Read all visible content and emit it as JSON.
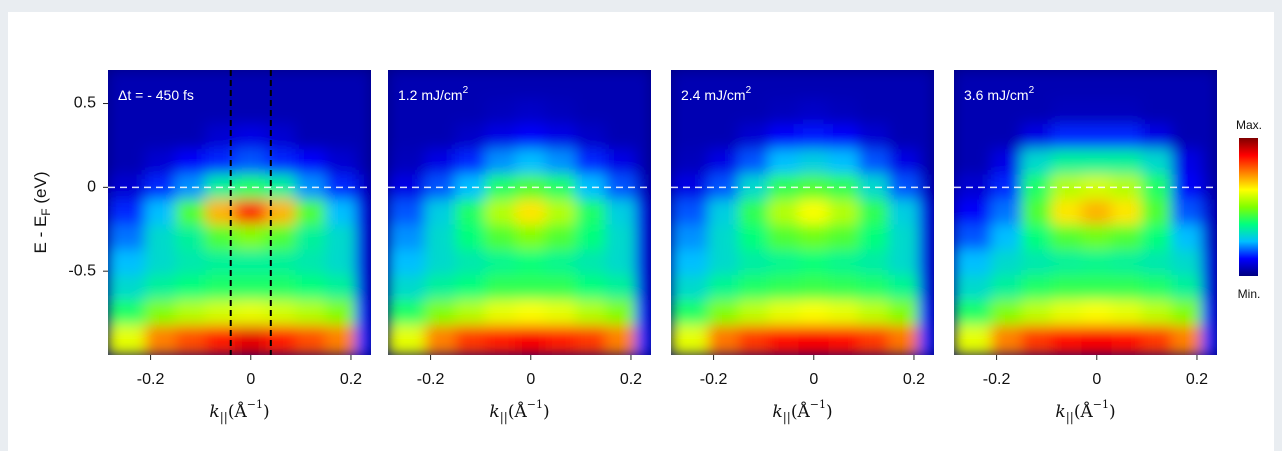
{
  "chart_data": [
    {
      "type": "heatmap",
      "title": "Δt = - 450 fs",
      "ylabel": {
        "text": "E - E",
        "sub": "F",
        "suffix": " (eV)"
      },
      "xlabel": {
        "k": "k",
        "sub": "||",
        "open": "(Å",
        "sup": "−1",
        "close": ")"
      },
      "xlim": [
        -0.285,
        0.24
      ],
      "ylim": [
        -1.0,
        0.7
      ],
      "xticks": [
        -0.2,
        0,
        0.2
      ],
      "yticks": [
        0.5,
        0,
        -0.5
      ],
      "hline": 0,
      "vlines": [
        -0.04,
        0.04
      ],
      "x": [
        -0.24,
        -0.18,
        -0.12,
        -0.06,
        0,
        0.06,
        0.12,
        0.18,
        0.24
      ],
      "y": [
        0.6,
        0.45,
        0.3,
        0.15,
        0,
        -0.15,
        -0.3,
        -0.45,
        -0.6,
        -0.75,
        -0.9
      ],
      "z": [
        [
          0.05,
          0.05,
          0.05,
          0.05,
          0.05,
          0.05,
          0.05,
          0.05,
          0.05
        ],
        [
          0.05,
          0.05,
          0.05,
          0.05,
          0.05,
          0.05,
          0.05,
          0.05,
          0.05
        ],
        [
          0.05,
          0.05,
          0.05,
          0.08,
          0.1,
          0.08,
          0.05,
          0.05,
          0.05
        ],
        [
          0.05,
          0.08,
          0.12,
          0.15,
          0.18,
          0.15,
          0.12,
          0.08,
          0.05
        ],
        [
          0.08,
          0.15,
          0.22,
          0.35,
          0.4,
          0.35,
          0.22,
          0.15,
          0.08
        ],
        [
          0.15,
          0.25,
          0.45,
          0.7,
          0.85,
          0.7,
          0.45,
          0.25,
          0.1
        ],
        [
          0.2,
          0.3,
          0.35,
          0.45,
          0.5,
          0.45,
          0.35,
          0.3,
          0.1
        ],
        [
          0.25,
          0.3,
          0.33,
          0.35,
          0.35,
          0.35,
          0.33,
          0.3,
          0.1
        ],
        [
          0.3,
          0.35,
          0.38,
          0.4,
          0.4,
          0.4,
          0.38,
          0.35,
          0.1
        ],
        [
          0.4,
          0.5,
          0.55,
          0.58,
          0.6,
          0.58,
          0.55,
          0.5,
          0.12
        ],
        [
          0.6,
          0.75,
          0.8,
          0.85,
          0.9,
          0.85,
          0.8,
          0.75,
          0.15
        ]
      ]
    },
    {
      "type": "heatmap",
      "title": "1.2 mJ/cm",
      "title_sup": "2",
      "xlabel": {
        "k": "k",
        "sub": "||",
        "open": "(Å",
        "sup": "−1",
        "close": ")"
      },
      "xlim": [
        -0.285,
        0.24
      ],
      "ylim": [
        -1.0,
        0.7
      ],
      "xticks": [
        -0.2,
        0,
        0.2
      ],
      "hline": 0,
      "x": [
        -0.24,
        -0.18,
        -0.12,
        -0.06,
        0,
        0.06,
        0.12,
        0.18,
        0.24
      ],
      "y": [
        0.6,
        0.45,
        0.3,
        0.15,
        0,
        -0.15,
        -0.3,
        -0.45,
        -0.6,
        -0.75,
        -0.9
      ],
      "z": [
        [
          0.05,
          0.05,
          0.05,
          0.05,
          0.05,
          0.05,
          0.05,
          0.05,
          0.05
        ],
        [
          0.05,
          0.05,
          0.05,
          0.06,
          0.07,
          0.06,
          0.05,
          0.05,
          0.05
        ],
        [
          0.05,
          0.05,
          0.07,
          0.1,
          0.12,
          0.1,
          0.07,
          0.05,
          0.05
        ],
        [
          0.06,
          0.1,
          0.15,
          0.22,
          0.25,
          0.22,
          0.15,
          0.1,
          0.05
        ],
        [
          0.1,
          0.18,
          0.25,
          0.4,
          0.45,
          0.4,
          0.25,
          0.18,
          0.07
        ],
        [
          0.18,
          0.28,
          0.4,
          0.55,
          0.65,
          0.55,
          0.4,
          0.28,
          0.1
        ],
        [
          0.22,
          0.3,
          0.38,
          0.45,
          0.5,
          0.45,
          0.38,
          0.3,
          0.1
        ],
        [
          0.25,
          0.3,
          0.33,
          0.36,
          0.38,
          0.36,
          0.33,
          0.3,
          0.1
        ],
        [
          0.3,
          0.35,
          0.38,
          0.42,
          0.42,
          0.42,
          0.38,
          0.35,
          0.1
        ],
        [
          0.4,
          0.5,
          0.55,
          0.6,
          0.62,
          0.6,
          0.55,
          0.5,
          0.12
        ],
        [
          0.6,
          0.75,
          0.82,
          0.85,
          0.88,
          0.85,
          0.82,
          0.75,
          0.15
        ]
      ]
    },
    {
      "type": "heatmap",
      "title": "2.4 mJ/cm",
      "title_sup": "2",
      "xlabel": {
        "k": "k",
        "sub": "||",
        "open": "(Å",
        "sup": "−1",
        "close": ")"
      },
      "xlim": [
        -0.285,
        0.24
      ],
      "ylim": [
        -1.0,
        0.7
      ],
      "xticks": [
        -0.2,
        0,
        0.2
      ],
      "hline": 0,
      "x": [
        -0.24,
        -0.18,
        -0.12,
        -0.06,
        0,
        0.06,
        0.12,
        0.18,
        0.24
      ],
      "y": [
        0.6,
        0.45,
        0.3,
        0.15,
        0,
        -0.15,
        -0.3,
        -0.45,
        -0.6,
        -0.75,
        -0.9
      ],
      "z": [
        [
          0.05,
          0.05,
          0.05,
          0.05,
          0.05,
          0.05,
          0.05,
          0.05,
          0.05
        ],
        [
          0.05,
          0.05,
          0.05,
          0.06,
          0.07,
          0.06,
          0.05,
          0.05,
          0.05
        ],
        [
          0.05,
          0.05,
          0.08,
          0.12,
          0.14,
          0.12,
          0.08,
          0.05,
          0.05
        ],
        [
          0.06,
          0.1,
          0.18,
          0.25,
          0.28,
          0.25,
          0.18,
          0.1,
          0.05
        ],
        [
          0.1,
          0.18,
          0.3,
          0.42,
          0.45,
          0.42,
          0.3,
          0.18,
          0.07
        ],
        [
          0.18,
          0.28,
          0.42,
          0.55,
          0.62,
          0.55,
          0.42,
          0.28,
          0.1
        ],
        [
          0.22,
          0.3,
          0.38,
          0.45,
          0.48,
          0.45,
          0.38,
          0.3,
          0.1
        ],
        [
          0.25,
          0.3,
          0.34,
          0.36,
          0.38,
          0.36,
          0.34,
          0.3,
          0.1
        ],
        [
          0.3,
          0.36,
          0.4,
          0.42,
          0.43,
          0.42,
          0.4,
          0.36,
          0.1
        ],
        [
          0.4,
          0.5,
          0.56,
          0.6,
          0.62,
          0.6,
          0.56,
          0.5,
          0.12
        ],
        [
          0.6,
          0.76,
          0.82,
          0.86,
          0.88,
          0.86,
          0.82,
          0.76,
          0.15
        ]
      ]
    },
    {
      "type": "heatmap",
      "title": "3.6 mJ/cm",
      "title_sup": "2",
      "xlabel": {
        "k": "k",
        "sub": "||",
        "open": "(Å",
        "sup": "−1",
        "close": ")"
      },
      "xlim": [
        -0.285,
        0.24
      ],
      "ylim": [
        -1.0,
        0.7
      ],
      "xticks": [
        -0.2,
        0,
        0.2
      ],
      "hline": 0,
      "x": [
        -0.24,
        -0.18,
        -0.12,
        -0.06,
        0,
        0.06,
        0.12,
        0.18,
        0.24
      ],
      "y": [
        0.6,
        0.45,
        0.3,
        0.15,
        0,
        -0.15,
        -0.3,
        -0.45,
        -0.6,
        -0.75,
        -0.9
      ],
      "z": [
        [
          0.05,
          0.05,
          0.05,
          0.05,
          0.05,
          0.05,
          0.05,
          0.05,
          0.05
        ],
        [
          0.05,
          0.05,
          0.05,
          0.06,
          0.06,
          0.06,
          0.05,
          0.05,
          0.05
        ],
        [
          0.05,
          0.05,
          0.1,
          0.15,
          0.15,
          0.15,
          0.1,
          0.05,
          0.05
        ],
        [
          0.05,
          0.1,
          0.3,
          0.35,
          0.35,
          0.35,
          0.3,
          0.1,
          0.05
        ],
        [
          0.08,
          0.15,
          0.4,
          0.55,
          0.58,
          0.55,
          0.4,
          0.12,
          0.06
        ],
        [
          0.12,
          0.2,
          0.45,
          0.65,
          0.7,
          0.65,
          0.45,
          0.18,
          0.08
        ],
        [
          0.18,
          0.25,
          0.38,
          0.45,
          0.48,
          0.45,
          0.38,
          0.25,
          0.08
        ],
        [
          0.25,
          0.3,
          0.33,
          0.35,
          0.36,
          0.35,
          0.33,
          0.3,
          0.1
        ],
        [
          0.3,
          0.35,
          0.4,
          0.42,
          0.42,
          0.42,
          0.4,
          0.35,
          0.1
        ],
        [
          0.4,
          0.5,
          0.56,
          0.6,
          0.62,
          0.6,
          0.56,
          0.5,
          0.12
        ],
        [
          0.6,
          0.75,
          0.82,
          0.86,
          0.88,
          0.86,
          0.82,
          0.75,
          0.15
        ]
      ],
      "colorbar": {
        "max_label": "Max.",
        "min_label": "Min.",
        "colors": [
          "#00007f",
          "#0000ff",
          "#00bfff",
          "#00ff80",
          "#80ff00",
          "#ffff00",
          "#ff8000",
          "#ff0000",
          "#7f0000"
        ]
      }
    }
  ]
}
